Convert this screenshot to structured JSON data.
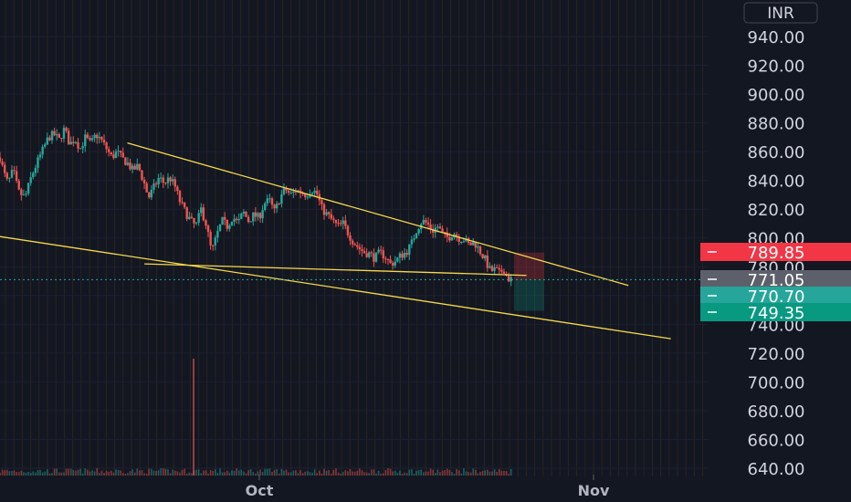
{
  "currency_button": "INR",
  "chart_data": {
    "type": "candlestick",
    "y_ticks": [
      "940.00",
      "920.00",
      "900.00",
      "880.00",
      "860.00",
      "840.00",
      "820.00",
      "800.00",
      "780.00",
      "760.00",
      "740.00",
      "720.00",
      "700.00",
      "680.00",
      "660.00",
      "640.00"
    ],
    "x_ticks": [
      "Oct",
      "Nov"
    ],
    "ylim": [
      635,
      958
    ],
    "price_labels": [
      {
        "label": "789.85",
        "value": 789.85,
        "color": "#f23645"
      },
      {
        "label": "771.05",
        "value": 771.05,
        "color": "#5d606b"
      },
      {
        "label": "770.70",
        "value": 770.7,
        "color": "#26a69a"
      },
      {
        "label": "749.35",
        "value": 749.35,
        "color": "#089981"
      }
    ],
    "last_price": 771.05,
    "trendlines": [
      {
        "from": {
          "date": "2023-09-12",
          "price": 866
        },
        "to": {
          "date": "2023-11-10",
          "price": 767
        }
      },
      {
        "from": {
          "date": "2023-08-28",
          "price": 801
        },
        "to": {
          "date": "2023-11-15",
          "price": 730
        }
      },
      {
        "from": {
          "date": "2023-09-14",
          "price": 782
        },
        "to": {
          "date": "2023-10-29",
          "price": 774
        }
      }
    ],
    "position": {
      "entry": 771.05,
      "stop": 789.85,
      "target": 749.35
    },
    "candle_path": [
      [
        0,
        856
      ],
      [
        3,
        845
      ],
      [
        6,
        838
      ],
      [
        10,
        847
      ],
      [
        14,
        832
      ],
      [
        19,
        828
      ],
      [
        24,
        843
      ],
      [
        28,
        852
      ],
      [
        33,
        862
      ],
      [
        37,
        870
      ],
      [
        41,
        872
      ],
      [
        45,
        868
      ],
      [
        49,
        876
      ],
      [
        53,
        865
      ],
      [
        57,
        869
      ],
      [
        61,
        862
      ],
      [
        65,
        870
      ],
      [
        69,
        865
      ],
      [
        73,
        872
      ],
      [
        77,
        868
      ],
      [
        81,
        862
      ],
      [
        85,
        856
      ],
      [
        89,
        860
      ],
      [
        93,
        855
      ],
      [
        97,
        852
      ],
      [
        101,
        847
      ],
      [
        105,
        850
      ],
      [
        109,
        840
      ],
      [
        113,
        828
      ],
      [
        117,
        835
      ],
      [
        121,
        842
      ],
      [
        125,
        838
      ],
      [
        129,
        842
      ],
      [
        133,
        836
      ],
      [
        137,
        825
      ],
      [
        141,
        818
      ],
      [
        145,
        812
      ],
      [
        149,
        808
      ],
      [
        153,
        820
      ],
      [
        157,
        809
      ],
      [
        161,
        790
      ],
      [
        165,
        802
      ],
      [
        169,
        812
      ],
      [
        173,
        808
      ],
      [
        177,
        815
      ],
      [
        181,
        810
      ],
      [
        185,
        818
      ],
      [
        189,
        812
      ],
      [
        193,
        816
      ],
      [
        197,
        814
      ],
      [
        201,
        824
      ],
      [
        205,
        826
      ],
      [
        209,
        818
      ],
      [
        213,
        828
      ],
      [
        217,
        834
      ],
      [
        221,
        830
      ],
      [
        225,
        833
      ],
      [
        229,
        832
      ],
      [
        233,
        830
      ],
      [
        237,
        834
      ],
      [
        241,
        831
      ],
      [
        245,
        820
      ],
      [
        249,
        816
      ],
      [
        253,
        812
      ],
      [
        257,
        808
      ],
      [
        261,
        810
      ],
      [
        265,
        803
      ],
      [
        269,
        797
      ],
      [
        273,
        793
      ],
      [
        277,
        790
      ],
      [
        281,
        789
      ],
      [
        285,
        786
      ],
      [
        289,
        790
      ],
      [
        293,
        787
      ],
      [
        297,
        782
      ],
      [
        301,
        784
      ],
      [
        305,
        788
      ],
      [
        309,
        790
      ],
      [
        313,
        796
      ],
      [
        317,
        806
      ],
      [
        321,
        812
      ],
      [
        325,
        810
      ],
      [
        329,
        805
      ],
      [
        333,
        808
      ],
      [
        337,
        802
      ],
      [
        341,
        800
      ],
      [
        345,
        804
      ],
      [
        349,
        800
      ],
      [
        353,
        799
      ],
      [
        357,
        795
      ],
      [
        361,
        797
      ],
      [
        365,
        791
      ],
      [
        369,
        785
      ],
      [
        373,
        777
      ],
      [
        377,
        778
      ],
      [
        380,
        775
      ],
      [
        383,
        779
      ],
      [
        386,
        772
      ],
      [
        389,
        771
      ]
    ]
  }
}
